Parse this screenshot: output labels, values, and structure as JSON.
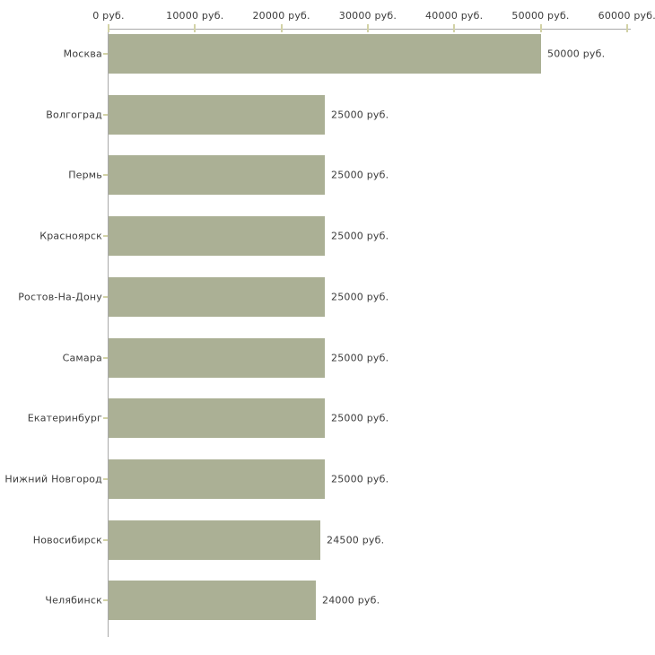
{
  "chart_data": {
    "type": "bar",
    "orientation": "horizontal",
    "title": "",
    "xlabel": "",
    "ylabel": "",
    "categories": [
      "Москва",
      "Волгоград",
      "Пермь",
      "Красноярск",
      "Ростов-На-Дону",
      "Самара",
      "Екатеринбург",
      "Нижний Новгород",
      "Новосибирск",
      "Челябинск"
    ],
    "values": [
      50000,
      25000,
      25000,
      25000,
      25000,
      25000,
      25000,
      25000,
      24500,
      24000
    ],
    "value_labels": [
      "50000 руб.",
      "25000 руб.",
      "25000 руб.",
      "25000 руб.",
      "25000 руб.",
      "25000 руб.",
      "25000 руб.",
      "25000 руб.",
      "24500 руб.",
      "24000 руб."
    ],
    "x_axis": {
      "position": "top",
      "min": 0,
      "max": 60000,
      "ticks": [
        0,
        10000,
        20000,
        30000,
        40000,
        50000,
        60000
      ],
      "tick_labels": [
        "0 руб.",
        "10000 руб.",
        "20000 руб.",
        "30000 руб.",
        "40000 руб.",
        "50000 руб.",
        "60000 руб."
      ]
    },
    "grid": false,
    "legend": false,
    "colors": {
      "bar": "#abb095",
      "axis_line": "#a9a9a9",
      "axis_tick": "#d2d2a6",
      "text": "#3b3b3b",
      "background": "#ffffff"
    }
  }
}
